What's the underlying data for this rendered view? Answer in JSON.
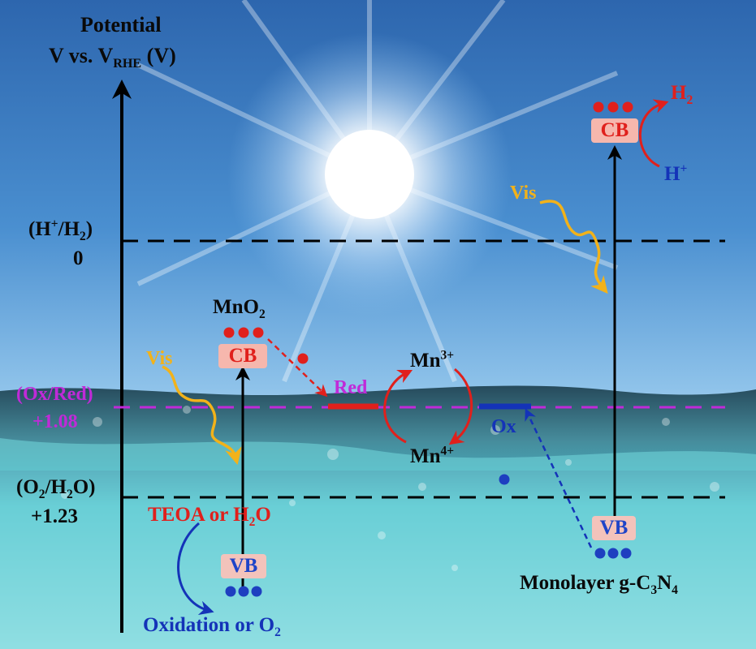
{
  "axis": {
    "title_line1": "Potential",
    "title_line2_prefix": "V vs. V",
    "title_line2_sub": "RHE",
    "title_line2_suffix": " (V)"
  },
  "levels": {
    "h2": {
      "label_pre": "(H",
      "label_sup": "+",
      "label_mid": "/H",
      "label_sub": "2",
      "label_post": ")",
      "value": "0"
    },
    "oxred": {
      "label": "(Ox/Red)",
      "value": "+1.08"
    },
    "o2": {
      "label_pre": "(O",
      "label_sub1": "2",
      "label_mid": "/H",
      "label_sub2": "2",
      "label_post": "O)",
      "value": "+1.23"
    }
  },
  "mno2": {
    "name_pre": "MnO",
    "name_sub": "2",
    "cb": "CB",
    "vb": "VB",
    "donor": "TEOA or H",
    "donor_sub": "2",
    "donor_post": "O",
    "product_pre": "Oxidation or O",
    "product_sub": "2"
  },
  "gc3n4": {
    "cb": "CB",
    "vb": "VB",
    "name_pre": "Monolayer g-C",
    "name_sub1": "3",
    "name_mid": "N",
    "name_sub2": "4",
    "h2_pre": "H",
    "h2_sub": "2",
    "hplus": "H",
    "hplus_sup": "+"
  },
  "mn": {
    "mn3": "Mn",
    "mn3_sup": "3+",
    "mn4": "Mn",
    "mn4_sup": "4+"
  },
  "redox": {
    "red": "Red",
    "ox": "Ox"
  },
  "light": {
    "vis_left": "Vis",
    "vis_right": "Vis"
  },
  "colors": {
    "electron": "#e0201c",
    "hole": "#1e3fc0",
    "sky_top": "#2e6fb5",
    "water": "#4fd0d6"
  }
}
